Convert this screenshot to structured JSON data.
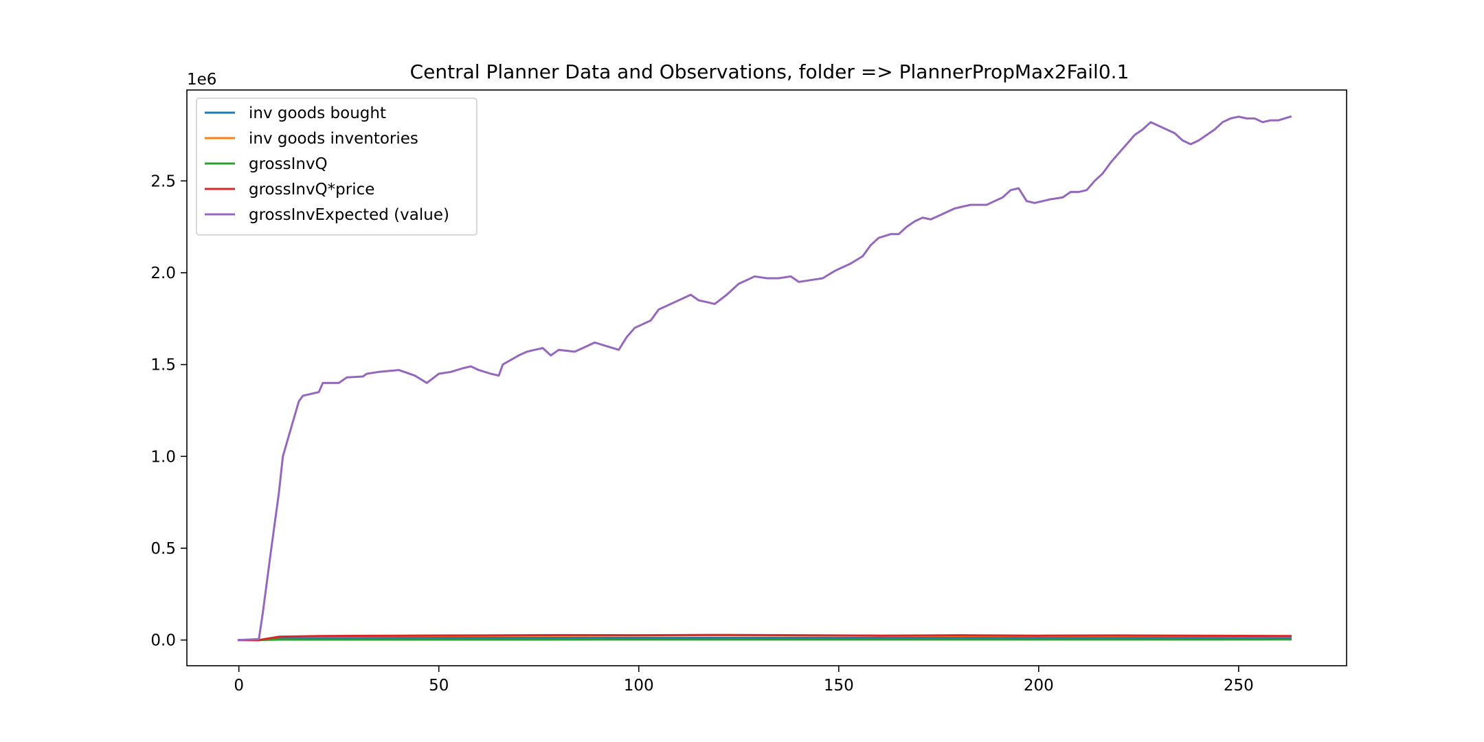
{
  "chart_data": {
    "type": "line",
    "title": "Central Planner Data and Observations, folder => PlannerPropMax2Fail0.1",
    "xlabel": "",
    "ylabel": "",
    "y_offset_label": "1e6",
    "xlim": [
      -13,
      277
    ],
    "ylim": [
      -140000,
      2995000
    ],
    "x_ticks": [
      0,
      50,
      100,
      150,
      200,
      250
    ],
    "y_ticks": [
      0.0,
      500000,
      1000000,
      1500000,
      2000000,
      2500000
    ],
    "y_tick_labels": [
      "0.0",
      "0.5",
      "1.0",
      "1.5",
      "2.0",
      "2.5"
    ],
    "grid": false,
    "legend_position": "upper left",
    "x_end": 263,
    "series": [
      {
        "name": "inv goods bought",
        "color": "#1f77b4",
        "points": [
          [
            0,
            0
          ],
          [
            5,
            0
          ],
          [
            10,
            12000
          ],
          [
            263,
            12000
          ]
        ]
      },
      {
        "name": "inv goods inventories",
        "color": "#ff7f0e",
        "points": [
          [
            0,
            0
          ],
          [
            5,
            0
          ],
          [
            10,
            18000
          ],
          [
            40,
            22000
          ],
          [
            80,
            24000
          ],
          [
            120,
            26000
          ],
          [
            160,
            24000
          ],
          [
            200,
            22000
          ],
          [
            240,
            22000
          ],
          [
            263,
            20000
          ]
        ]
      },
      {
        "name": "grossInvQ",
        "color": "#2ca02c",
        "points": [
          [
            0,
            0
          ],
          [
            5,
            0
          ],
          [
            10,
            2000
          ],
          [
            263,
            3000
          ]
        ]
      },
      {
        "name": "grossInvQ*price",
        "color": "#d62728",
        "points": [
          [
            0,
            0
          ],
          [
            5,
            0
          ],
          [
            10,
            18000
          ],
          [
            20,
            22000
          ],
          [
            40,
            24000
          ],
          [
            60,
            25000
          ],
          [
            80,
            27000
          ],
          [
            100,
            26000
          ],
          [
            120,
            28000
          ],
          [
            140,
            26000
          ],
          [
            160,
            24000
          ],
          [
            180,
            26000
          ],
          [
            200,
            24000
          ],
          [
            220,
            25000
          ],
          [
            240,
            24000
          ],
          [
            263,
            22000
          ]
        ]
      },
      {
        "name": "grossInvExpected (value)",
        "color": "#9467bd",
        "points": [
          [
            0,
            0
          ],
          [
            5,
            5000
          ],
          [
            6,
            150000
          ],
          [
            8,
            480000
          ],
          [
            10,
            800000
          ],
          [
            11,
            1000000
          ],
          [
            13,
            1150000
          ],
          [
            15,
            1300000
          ],
          [
            16,
            1330000
          ],
          [
            20,
            1350000
          ],
          [
            21,
            1400000
          ],
          [
            25,
            1400000
          ],
          [
            27,
            1430000
          ],
          [
            31,
            1435000
          ],
          [
            32,
            1450000
          ],
          [
            35,
            1460000
          ],
          [
            40,
            1470000
          ],
          [
            44,
            1440000
          ],
          [
            47,
            1400000
          ],
          [
            50,
            1450000
          ],
          [
            53,
            1460000
          ],
          [
            56,
            1480000
          ],
          [
            58,
            1490000
          ],
          [
            60,
            1470000
          ],
          [
            63,
            1450000
          ],
          [
            65,
            1440000
          ],
          [
            66,
            1500000
          ],
          [
            70,
            1550000
          ],
          [
            72,
            1570000
          ],
          [
            74,
            1580000
          ],
          [
            76,
            1590000
          ],
          [
            78,
            1550000
          ],
          [
            80,
            1580000
          ],
          [
            84,
            1570000
          ],
          [
            86,
            1590000
          ],
          [
            89,
            1620000
          ],
          [
            92,
            1600000
          ],
          [
            95,
            1580000
          ],
          [
            97,
            1650000
          ],
          [
            99,
            1700000
          ],
          [
            101,
            1720000
          ],
          [
            103,
            1740000
          ],
          [
            105,
            1800000
          ],
          [
            107,
            1820000
          ],
          [
            109,
            1840000
          ],
          [
            111,
            1860000
          ],
          [
            113,
            1880000
          ],
          [
            115,
            1850000
          ],
          [
            117,
            1840000
          ],
          [
            119,
            1830000
          ],
          [
            122,
            1880000
          ],
          [
            125,
            1940000
          ],
          [
            127,
            1960000
          ],
          [
            129,
            1980000
          ],
          [
            132,
            1970000
          ],
          [
            135,
            1970000
          ],
          [
            138,
            1980000
          ],
          [
            140,
            1950000
          ],
          [
            143,
            1960000
          ],
          [
            146,
            1970000
          ],
          [
            149,
            2010000
          ],
          [
            151,
            2030000
          ],
          [
            153,
            2050000
          ],
          [
            156,
            2090000
          ],
          [
            158,
            2150000
          ],
          [
            160,
            2190000
          ],
          [
            163,
            2210000
          ],
          [
            165,
            2210000
          ],
          [
            167,
            2250000
          ],
          [
            169,
            2280000
          ],
          [
            171,
            2300000
          ],
          [
            173,
            2290000
          ],
          [
            175,
            2310000
          ],
          [
            177,
            2330000
          ],
          [
            179,
            2350000
          ],
          [
            181,
            2360000
          ],
          [
            183,
            2370000
          ],
          [
            185,
            2370000
          ],
          [
            187,
            2370000
          ],
          [
            189,
            2390000
          ],
          [
            191,
            2410000
          ],
          [
            193,
            2450000
          ],
          [
            195,
            2460000
          ],
          [
            197,
            2390000
          ],
          [
            199,
            2380000
          ],
          [
            201,
            2390000
          ],
          [
            203,
            2400000
          ],
          [
            206,
            2410000
          ],
          [
            208,
            2440000
          ],
          [
            210,
            2440000
          ],
          [
            212,
            2450000
          ],
          [
            214,
            2500000
          ],
          [
            216,
            2540000
          ],
          [
            218,
            2600000
          ],
          [
            220,
            2650000
          ],
          [
            222,
            2700000
          ],
          [
            224,
            2750000
          ],
          [
            226,
            2780000
          ],
          [
            228,
            2820000
          ],
          [
            230,
            2800000
          ],
          [
            232,
            2780000
          ],
          [
            234,
            2760000
          ],
          [
            236,
            2720000
          ],
          [
            238,
            2700000
          ],
          [
            240,
            2720000
          ],
          [
            242,
            2750000
          ],
          [
            244,
            2780000
          ],
          [
            246,
            2820000
          ],
          [
            248,
            2840000
          ],
          [
            250,
            2850000
          ],
          [
            252,
            2840000
          ],
          [
            254,
            2840000
          ],
          [
            256,
            2820000
          ],
          [
            258,
            2830000
          ],
          [
            260,
            2830000
          ],
          [
            263,
            2850000
          ]
        ]
      }
    ]
  }
}
